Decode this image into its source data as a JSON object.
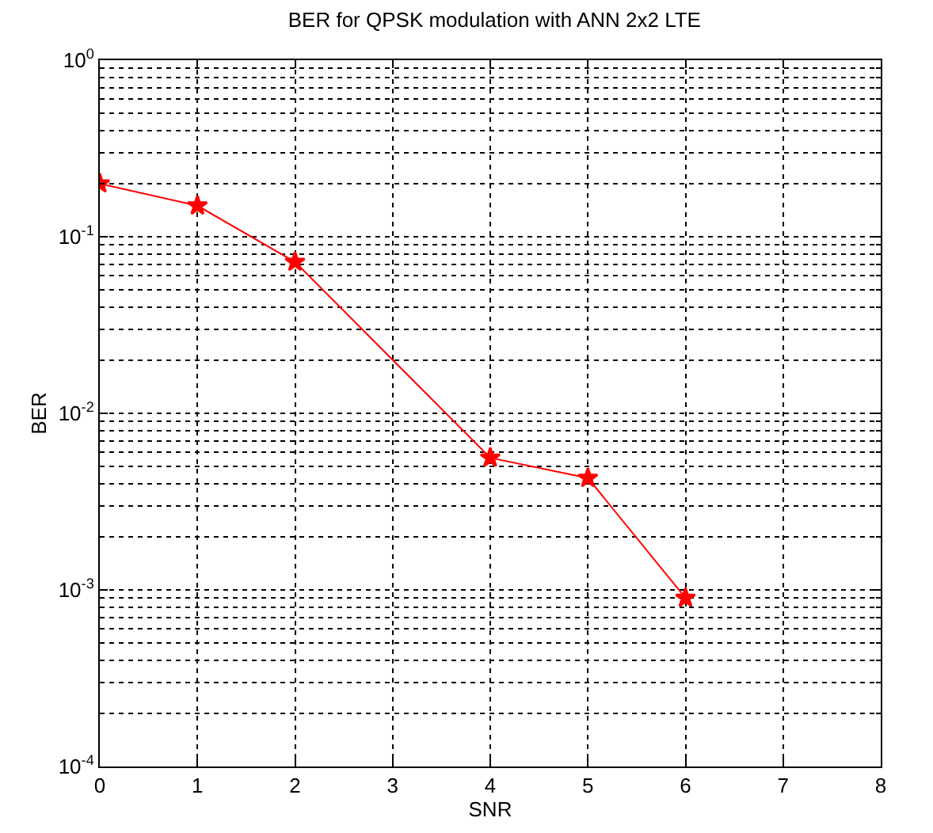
{
  "chart_data": {
    "type": "line",
    "title": "BER for QPSK modulation with ANN 2x2 LTE",
    "xlabel": "SNR",
    "ylabel": "BER",
    "x": [
      0,
      1,
      2,
      4,
      5,
      6
    ],
    "series": [
      {
        "color": "#ff0000",
        "values": [
          0.2,
          0.15,
          0.072,
          0.0056,
          0.0043,
          0.0009
        ]
      }
    ],
    "log": "y",
    "xlim": [
      0,
      8
    ],
    "xticks": [
      0,
      1,
      2,
      3,
      4,
      5,
      6,
      7,
      8
    ],
    "ylim": [
      0.0001,
      1
    ],
    "yticks": [
      {
        "value": 0.0001,
        "label": "10$^{-4}$"
      },
      {
        "value": 0.001,
        "label": "10$^{-3}$"
      },
      {
        "value": 0.01,
        "label": "10$^{-2}$"
      },
      {
        "value": 0.1,
        "label": "10$^{-1}$"
      },
      {
        "value": 1,
        "label": "10$^{0}$"
      }
    ],
    "grid": true,
    "marker": "star",
    "line_style": "solid",
    "legend": false
  }
}
